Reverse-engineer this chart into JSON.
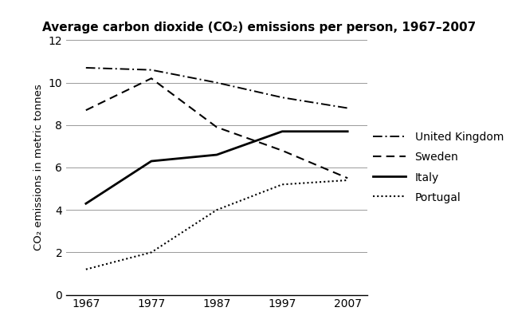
{
  "title": "Average carbon dioxide (CO₂) emissions per person, 1967–2007",
  "ylabel": "CO₂ emissions in metric tonnes",
  "years": [
    1967,
    1977,
    1987,
    1997,
    2007
  ],
  "series": {
    "United Kingdom": {
      "values": [
        10.7,
        10.6,
        10.0,
        9.3,
        8.8
      ],
      "linestyle": "dashdot",
      "linewidth": 1.4,
      "color": "#000000"
    },
    "Sweden": {
      "values": [
        8.7,
        10.2,
        7.9,
        6.8,
        5.5
      ],
      "linestyle": "dashed",
      "linewidth": 1.5,
      "color": "#000000"
    },
    "Italy": {
      "values": [
        4.3,
        6.3,
        6.6,
        7.7,
        7.7
      ],
      "linestyle": "solid",
      "linewidth": 2.0,
      "color": "#000000"
    },
    "Portugal": {
      "values": [
        1.2,
        2.0,
        4.0,
        5.2,
        5.4
      ],
      "linestyle": "dotted",
      "linewidth": 1.5,
      "color": "#000000"
    }
  },
  "ylim": [
    0,
    12
  ],
  "yticks": [
    0,
    2,
    4,
    6,
    8,
    10,
    12
  ],
  "xticks": [
    1967,
    1977,
    1987,
    1997,
    2007
  ],
  "xlim_left": 1964,
  "xlim_right": 2010,
  "grid_color": "#999999",
  "background_color": "#ffffff",
  "title_fontsize": 11,
  "axis_label_fontsize": 9.5,
  "tick_fontsize": 10,
  "legend_fontsize": 10
}
